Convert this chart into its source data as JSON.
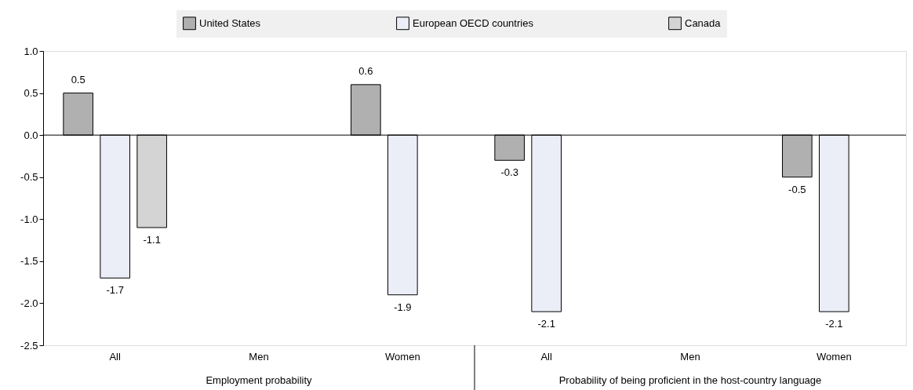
{
  "chart_data": {
    "type": "bar",
    "categories": [
      "All",
      "Men",
      "Women",
      "All",
      "Men",
      "Women"
    ],
    "series": [
      {
        "name": "United States",
        "color": "#b0b0b0",
        "values": [
          0.5,
          null,
          0.6,
          -0.3,
          null,
          -0.5
        ]
      },
      {
        "name": "European OECD countries",
        "color": "#eceef7",
        "values": [
          -1.7,
          null,
          -1.9,
          -2.1,
          null,
          -2.1
        ]
      },
      {
        "name": "Canada",
        "color": "#d4d4d4",
        "values": [
          -1.1,
          null,
          null,
          null,
          null,
          null
        ]
      }
    ],
    "ylim": [
      -2.5,
      1.0
    ],
    "yticks": [
      {
        "value": -2.5,
        "label": "-2.5"
      },
      {
        "value": -2,
        "label": "-2.0"
      },
      {
        "value": -1.5,
        "label": "-1.5"
      },
      {
        "value": -1,
        "label": "-1.0"
      },
      {
        "value": -0.5,
        "label": "-0.5"
      },
      {
        "value": 0,
        "label": "0.0"
      },
      {
        "value": 0.5,
        "label": "0.5"
      },
      {
        "value": 1,
        "label": "1.0"
      }
    ],
    "ref_lines": [
      {
        "axis": "y",
        "value": 0,
        "color": "#000000"
      }
    ],
    "annotations": [
      "Employment probability",
      "Probability of being proficient in the host-country language"
    ],
    "data_labels": true,
    "grid": false,
    "legend": "top"
  }
}
